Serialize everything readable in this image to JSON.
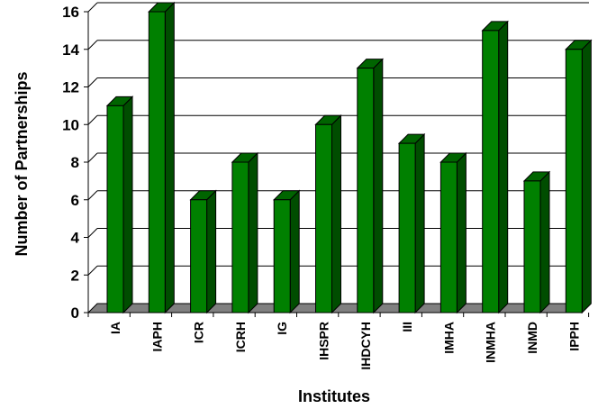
{
  "chart_data": {
    "type": "bar",
    "title": "",
    "xlabel": "Institutes",
    "ylabel": "Number of Partnerships",
    "categories": [
      "IA",
      "IAPH",
      "ICR",
      "ICRH",
      "IG",
      "IHSPR",
      "IHDCYH",
      "III",
      "IMHA",
      "INMHA",
      "INMD",
      "IPPH"
    ],
    "values": [
      11,
      16,
      6,
      8,
      6,
      10,
      13,
      9,
      8,
      15,
      7,
      14
    ],
    "ylim": [
      0,
      16
    ],
    "yticks": [
      0,
      2,
      4,
      6,
      8,
      10,
      12,
      14,
      16
    ],
    "grid": true,
    "legend": "none",
    "colors": {
      "bar_front": "#008000",
      "bar_side": "#004d00",
      "bar_top": "#006400",
      "floor": "#808080",
      "grid": "#000000"
    }
  }
}
